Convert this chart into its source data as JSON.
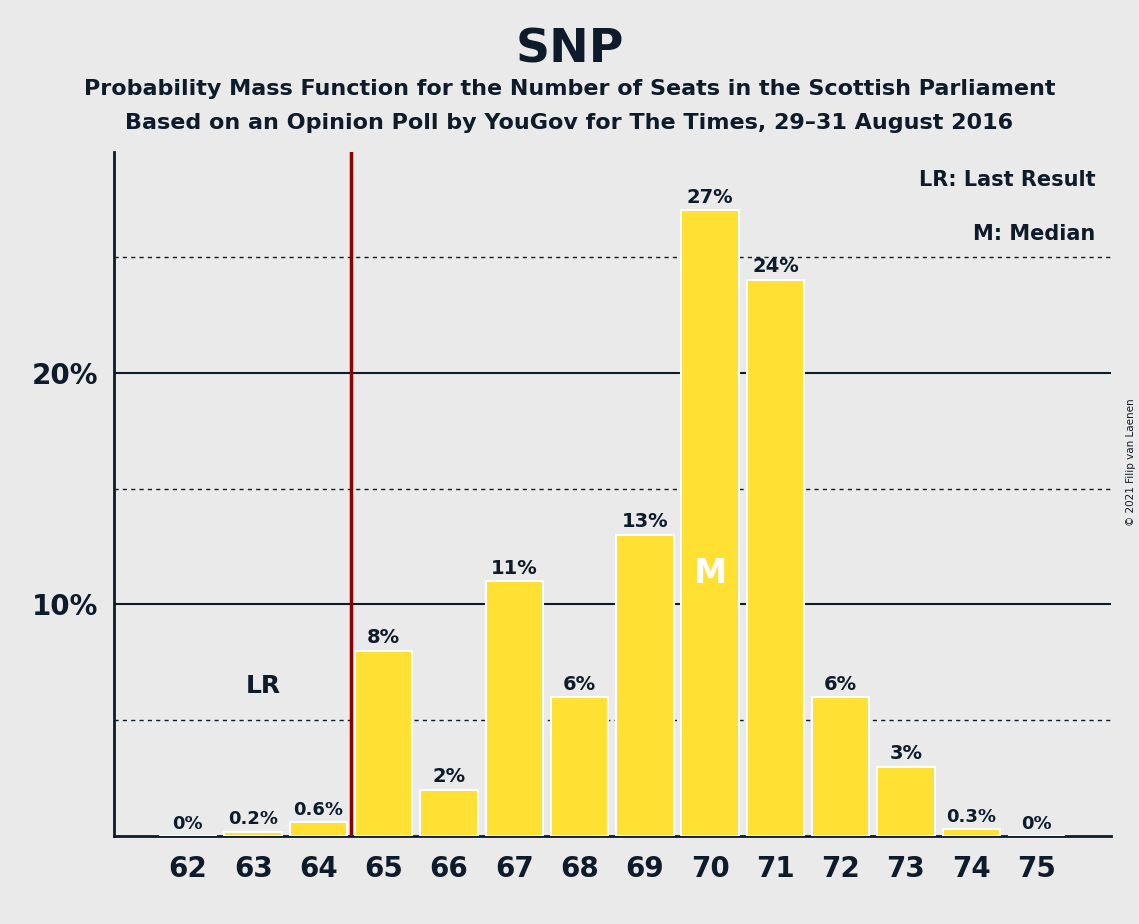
{
  "title": "SNP",
  "subtitle1": "Probability Mass Function for the Number of Seats in the Scottish Parliament",
  "subtitle2": "Based on an Opinion Poll by YouGov for The Times, 29–31 August 2016",
  "copyright": "© 2021 Filip van Laenen",
  "categories": [
    62,
    63,
    64,
    65,
    66,
    67,
    68,
    69,
    70,
    71,
    72,
    73,
    74,
    75
  ],
  "values": [
    0.0,
    0.2,
    0.6,
    8.0,
    2.0,
    11.0,
    6.0,
    13.0,
    27.0,
    24.0,
    6.0,
    3.0,
    0.3,
    0.0
  ],
  "bar_color": "#FFE033",
  "bar_edge_color": "#FFFFFF",
  "lr_between": [
    64,
    65
  ],
  "median_val": 70,
  "legend_lr": "LR: Last Result",
  "legend_m": "M: Median",
  "background_color": "#EAEAEA",
  "title_fontsize": 34,
  "subtitle_fontsize": 16,
  "label_fontsize": 14,
  "tick_fontsize": 20,
  "ytick_labels": [
    "10%",
    "20%"
  ],
  "ytick_values": [
    10,
    20
  ],
  "dotted_gridlines": [
    5,
    15,
    25
  ],
  "solid_gridlines": [
    10,
    20
  ],
  "ylim_max": 29.5,
  "text_color": "#0d1b2a"
}
